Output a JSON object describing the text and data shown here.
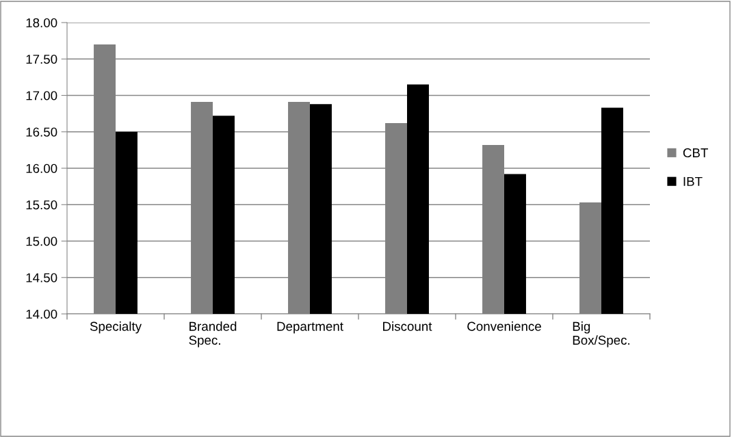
{
  "chart_data": {
    "type": "bar",
    "categories": [
      "Specialty",
      "Branded\nSpec.",
      "Department",
      "Discount",
      "Convenience",
      "Big\nBox/Spec."
    ],
    "series": [
      {
        "name": "CBT",
        "color": "#808080",
        "values": [
          17.7,
          16.91,
          16.91,
          16.62,
          16.32,
          15.53
        ]
      },
      {
        "name": "IBT",
        "color": "#000000",
        "values": [
          16.5,
          16.72,
          16.88,
          17.15,
          15.92,
          16.83
        ]
      }
    ],
    "ylim": [
      14,
      18
    ],
    "yticks": [
      {
        "value": 14,
        "label": "14.00"
      },
      {
        "value": 14.5,
        "label": "14.50"
      },
      {
        "value": 15,
        "label": "15.00"
      },
      {
        "value": 15.5,
        "label": "15.50"
      },
      {
        "value": 16,
        "label": "16.00"
      },
      {
        "value": 16.5,
        "label": "16.50"
      },
      {
        "value": 17,
        "label": "17.00"
      },
      {
        "value": 17.5,
        "label": "17.50"
      },
      {
        "value": 18,
        "label": "18.00"
      }
    ],
    "grid": "y",
    "legend": "right"
  }
}
